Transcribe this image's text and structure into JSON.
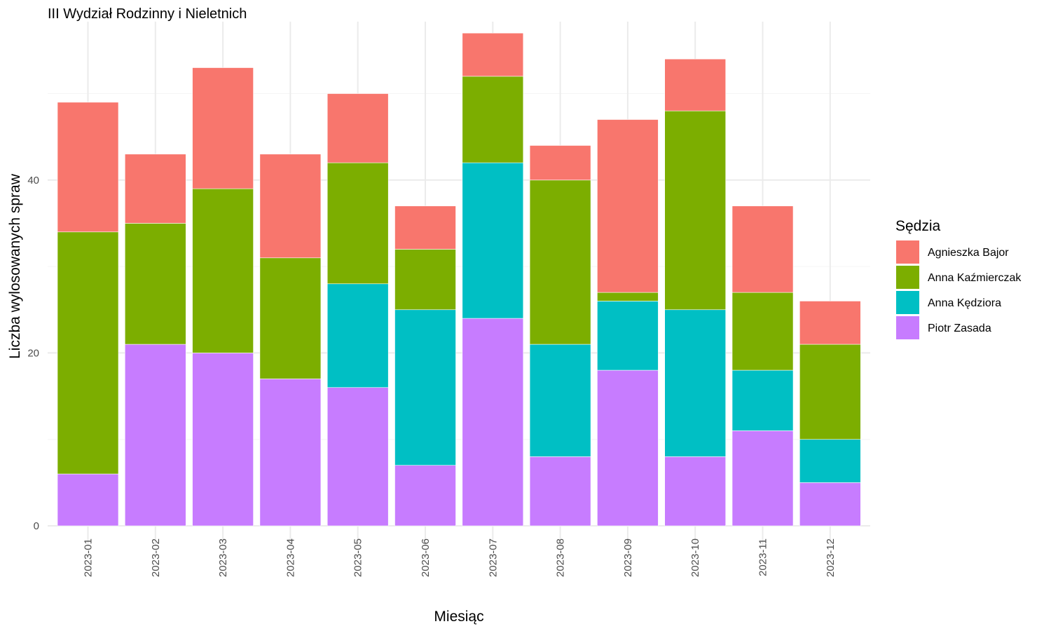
{
  "chart_data": {
    "type": "bar",
    "stacked": true,
    "title": "III Wydział Rodzinny i Nieletnich",
    "xlabel": "Miesiąc",
    "ylabel": "Liczba wylosowanych spraw",
    "ylim": [
      0,
      58
    ],
    "yticks": [
      0,
      20,
      40
    ],
    "grid": true,
    "legend_title": "Sędzia",
    "legend_position": "right",
    "categories": [
      "2023-01",
      "2023-02",
      "2023-03",
      "2023-04",
      "2023-05",
      "2023-06",
      "2023-07",
      "2023-08",
      "2023-09",
      "2023-10",
      "2023-11",
      "2023-12"
    ],
    "series": [
      {
        "name": "Agnieszka Bajor",
        "color": "#F8766D",
        "values": [
          15,
          8,
          14,
          12,
          8,
          5,
          5,
          4,
          20,
          6,
          10,
          5
        ]
      },
      {
        "name": "Anna Kaźmierczak",
        "color": "#7CAE00",
        "values": [
          28,
          14,
          19,
          14,
          14,
          7,
          10,
          19,
          1,
          23,
          9,
          11
        ]
      },
      {
        "name": "Anna Kędziora",
        "color": "#00BFC4",
        "values": [
          0,
          0,
          0,
          0,
          12,
          18,
          18,
          13,
          8,
          17,
          7,
          5
        ]
      },
      {
        "name": "Piotr Zasada",
        "color": "#C77CFF",
        "values": [
          6,
          21,
          20,
          17,
          16,
          7,
          24,
          8,
          18,
          8,
          11,
          5
        ]
      }
    ]
  }
}
